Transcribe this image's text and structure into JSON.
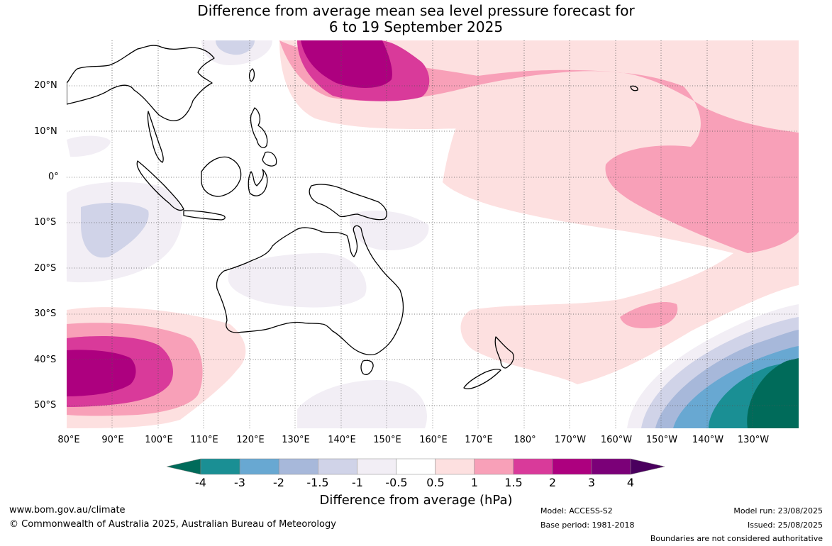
{
  "title": {
    "line1": "Difference from average mean sea level pressure forecast for",
    "line2": "6 to 19 September 2025"
  },
  "lat_labels": [
    "20°N",
    "10°N",
    "0°",
    "10°S",
    "20°S",
    "30°S",
    "40°S",
    "50°S"
  ],
  "lon_labels": [
    "80°E",
    "90°E",
    "100°E",
    "110°E",
    "120°E",
    "130°E",
    "140°E",
    "150°E",
    "160°E",
    "170°E",
    "180°",
    "170°W",
    "160°W",
    "150°W",
    "140°W",
    "130°W"
  ],
  "colorbar": {
    "ticks": [
      "-4",
      "-3",
      "-2",
      "-1.5",
      "-1",
      "-0.5",
      "0.5",
      "1",
      "1.5",
      "2",
      "3",
      "4"
    ],
    "colors": [
      "#006b5a",
      "#1a8f94",
      "#68a8d2",
      "#a7b8da",
      "#d0d3e8",
      "#f2eef5",
      "#ffffff",
      "#fde0e0",
      "#f8a0b8",
      "#d93a9a",
      "#ad007f",
      "#7b0078",
      "#4a005e"
    ],
    "label": "Difference from average (hPa)"
  },
  "footer": {
    "website": "www.bom.gov.au/climate",
    "copyright": "© Commonwealth of Australia 2025, Australian Bureau of Meteorology",
    "model": "Model: ACCESS-S2",
    "base_period": "Base period: 1981-2018",
    "model_run": "Model run: 23/08/2025",
    "issued": "Issued: 25/08/2025",
    "disclaimer": "Boundaries are not considered authoritative"
  }
}
